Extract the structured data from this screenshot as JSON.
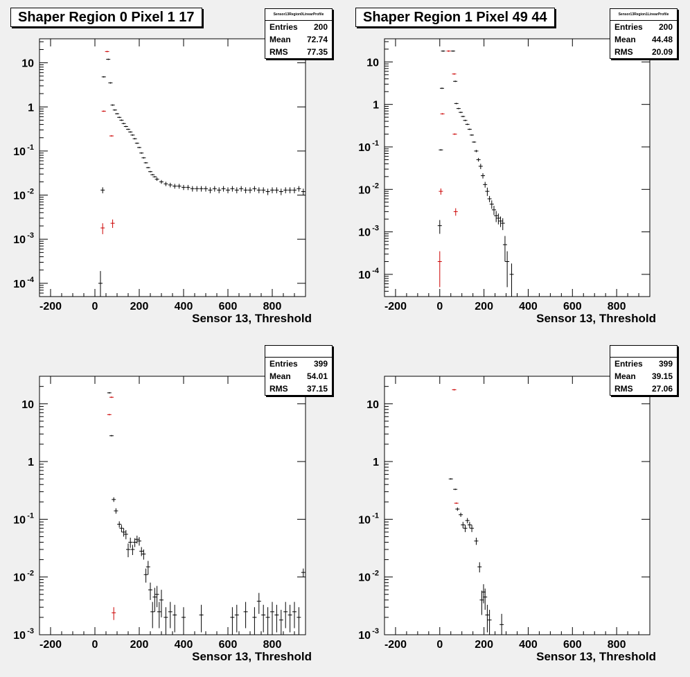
{
  "colors": {
    "background": "#f0f0f0",
    "frame": "#ffffff",
    "primary": "#000000",
    "secondary": "#cc0000"
  },
  "chart_data": [
    {
      "type": "scatter",
      "title": "Shaper Region 0 Pixel 1 17",
      "stats": {
        "name": "Sensor13Region0LinearProfile",
        "entries": "200",
        "mean": "72.74",
        "rms": "77.35"
      },
      "xlabel": "Sensor 13, Threshold",
      "xlim": [
        -250,
        950
      ],
      "ylim": [
        5e-05,
        35
      ],
      "yscale": "log",
      "xticks": [
        -200,
        0,
        200,
        400,
        600,
        800
      ],
      "xtick_labels": [
        "-200",
        "0",
        "200",
        "400",
        "600",
        "800"
      ],
      "yticks": [
        0.0001,
        0.001,
        0.01,
        0.1,
        1,
        10
      ],
      "ytick_labels": [
        [
          "10",
          "-4"
        ],
        [
          "10",
          "-3"
        ],
        [
          "10",
          "-2"
        ],
        [
          "10",
          "-1"
        ],
        [
          "1",
          ""
        ],
        [
          "10",
          ""
        ]
      ],
      "series": [
        {
          "color": "#000000",
          "points": [
            [
              25,
              0.0001,
              9e-05
            ],
            [
              35,
              0.013,
              0.002
            ],
            [
              40,
              4.8,
              0
            ],
            [
              60,
              12,
              0
            ],
            [
              70,
              3.5,
              0
            ],
            [
              80,
              1.1,
              0
            ],
            [
              90,
              0.85,
              0
            ],
            [
              100,
              0.7,
              0
            ],
            [
              110,
              0.58,
              0
            ],
            [
              120,
              0.5,
              0
            ],
            [
              130,
              0.42,
              0
            ],
            [
              140,
              0.36,
              0
            ],
            [
              150,
              0.31,
              0
            ],
            [
              160,
              0.27,
              0
            ],
            [
              170,
              0.23,
              0
            ],
            [
              180,
              0.19,
              0
            ],
            [
              190,
              0.15,
              0
            ],
            [
              200,
              0.12,
              0
            ],
            [
              210,
              0.09,
              0
            ],
            [
              220,
              0.07,
              0
            ],
            [
              230,
              0.054,
              0
            ],
            [
              240,
              0.042,
              0
            ],
            [
              250,
              0.034,
              0
            ],
            [
              260,
              0.029,
              0
            ],
            [
              270,
              0.026,
              0
            ],
            [
              280,
              0.023,
              0.002
            ],
            [
              300,
              0.02,
              0.002
            ],
            [
              320,
              0.018,
              0.002
            ],
            [
              340,
              0.017,
              0.002
            ],
            [
              360,
              0.016,
              0.002
            ],
            [
              380,
              0.016,
              0.002
            ],
            [
              400,
              0.015,
              0.002
            ],
            [
              420,
              0.015,
              0.002
            ],
            [
              440,
              0.014,
              0.002
            ],
            [
              460,
              0.014,
              0.002
            ],
            [
              480,
              0.014,
              0.002
            ],
            [
              500,
              0.014,
              0.002
            ],
            [
              520,
              0.013,
              0.002
            ],
            [
              540,
              0.014,
              0.002
            ],
            [
              560,
              0.013,
              0.002
            ],
            [
              580,
              0.014,
              0.002
            ],
            [
              600,
              0.013,
              0.002
            ],
            [
              620,
              0.014,
              0.002
            ],
            [
              640,
              0.013,
              0.002
            ],
            [
              660,
              0.014,
              0.002
            ],
            [
              680,
              0.013,
              0.002
            ],
            [
              700,
              0.013,
              0.002
            ],
            [
              720,
              0.014,
              0.002
            ],
            [
              740,
              0.013,
              0.002
            ],
            [
              760,
              0.013,
              0.002
            ],
            [
              780,
              0.012,
              0.002
            ],
            [
              800,
              0.013,
              0.002
            ],
            [
              820,
              0.013,
              0.002
            ],
            [
              840,
              0.012,
              0.002
            ],
            [
              860,
              0.013,
              0.002
            ],
            [
              880,
              0.013,
              0.002
            ],
            [
              900,
              0.013,
              0.002
            ],
            [
              920,
              0.014,
              0.002
            ],
            [
              940,
              0.012,
              0.002
            ]
          ]
        },
        {
          "color": "#cc0000",
          "points": [
            [
              35,
              0.0018,
              0.0005
            ],
            [
              40,
              0.8,
              0
            ],
            [
              55,
              18,
              0
            ],
            [
              75,
              0.22,
              0
            ],
            [
              80,
              0.0023,
              0.0005
            ]
          ]
        }
      ]
    },
    {
      "type": "scatter",
      "title": "Shaper Region 1 Pixel 49 44",
      "stats": {
        "name": "Sensor13Region1LinearProfile",
        "entries": "200",
        "mean": "44.48",
        "rms": "20.09"
      },
      "xlabel": "Sensor 13, Threshold",
      "xlim": [
        -250,
        950
      ],
      "ylim": [
        3e-05,
        35
      ],
      "yscale": "log",
      "xticks": [
        -200,
        0,
        200,
        400,
        600,
        800
      ],
      "xtick_labels": [
        "-200",
        "0",
        "200",
        "400",
        "600",
        "800"
      ],
      "yticks": [
        0.0001,
        0.001,
        0.01,
        0.1,
        1,
        10
      ],
      "ytick_labels": [
        [
          "10",
          "-4"
        ],
        [
          "10",
          "-3"
        ],
        [
          "10",
          "-2"
        ],
        [
          "10",
          "-1"
        ],
        [
          "1",
          ""
        ],
        [
          "10",
          ""
        ]
      ],
      "series": [
        {
          "color": "#000000",
          "points": [
            [
              0,
              0.0014,
              0.0005
            ],
            [
              5,
              0.085,
              0
            ],
            [
              10,
              2.4,
              0
            ],
            [
              15,
              18,
              0
            ],
            [
              60,
              18,
              0
            ],
            [
              70,
              3.5,
              0
            ],
            [
              75,
              1.05,
              0
            ],
            [
              85,
              0.8,
              0
            ],
            [
              95,
              0.65,
              0
            ],
            [
              105,
              0.52,
              0
            ],
            [
              115,
              0.42,
              0
            ],
            [
              125,
              0.34,
              0
            ],
            [
              135,
              0.26,
              0
            ],
            [
              145,
              0.19,
              0
            ],
            [
              155,
              0.13,
              0
            ],
            [
              165,
              0.08,
              0.005
            ],
            [
              175,
              0.05,
              0.005
            ],
            [
              185,
              0.035,
              0.005
            ],
            [
              195,
              0.021,
              0.003
            ],
            [
              205,
              0.013,
              0.002
            ],
            [
              215,
              0.009,
              0.002
            ],
            [
              225,
              0.006,
              0.001
            ],
            [
              235,
              0.0045,
              0.001
            ],
            [
              245,
              0.0033,
              0.0008
            ],
            [
              255,
              0.0024,
              0.0007
            ],
            [
              265,
              0.0021,
              0.0006
            ],
            [
              275,
              0.0018,
              0.0005
            ],
            [
              285,
              0.0016,
              0.0005
            ],
            [
              295,
              0.0005,
              0.0003
            ],
            [
              305,
              0.0002,
              0.00015
            ],
            [
              325,
              0.0001,
              8e-05
            ]
          ]
        },
        {
          "color": "#cc0000",
          "points": [
            [
              0,
              0.0002,
              0.00015
            ],
            [
              5,
              0.009,
              0.0015
            ],
            [
              12,
              0.6,
              0
            ],
            [
              40,
              18,
              0
            ],
            [
              65,
              5.2,
              0
            ],
            [
              68,
              0.2,
              0
            ],
            [
              72,
              0.003,
              0.0006
            ]
          ]
        }
      ]
    },
    {
      "type": "scatter",
      "title": "",
      "stats": {
        "name": "",
        "entries": "399",
        "mean": "54.01",
        "rms": "37.15"
      },
      "xlabel": "Sensor 13, Threshold",
      "xlim": [
        -250,
        950
      ],
      "ylim": [
        0.001,
        30
      ],
      "yscale": "log",
      "xticks": [
        -200,
        0,
        200,
        400,
        600,
        800
      ],
      "xtick_labels": [
        "-200",
        "0",
        "200",
        "400",
        "600",
        "800"
      ],
      "yticks": [
        0.001,
        0.01,
        0.1,
        1,
        10
      ],
      "ytick_labels": [
        [
          "10",
          "-3"
        ],
        [
          "10",
          "-2"
        ],
        [
          "10",
          "-1"
        ],
        [
          "1",
          ""
        ],
        [
          "10",
          ""
        ]
      ],
      "series": [
        {
          "color": "#000000",
          "points": [
            [
              65,
              15.5,
              0
            ],
            [
              75,
              2.8,
              0
            ],
            [
              85,
              0.22,
              0.02
            ],
            [
              95,
              0.14,
              0.015
            ],
            [
              110,
              0.082,
              0.01
            ],
            [
              120,
              0.07,
              0.01
            ],
            [
              130,
              0.06,
              0.01
            ],
            [
              140,
              0.055,
              0.01
            ],
            [
              150,
              0.03,
              0.008
            ],
            [
              160,
              0.04,
              0.008
            ],
            [
              170,
              0.03,
              0.006
            ],
            [
              180,
              0.04,
              0.007
            ],
            [
              190,
              0.045,
              0.007
            ],
            [
              200,
              0.042,
              0.007
            ],
            [
              210,
              0.028,
              0.005
            ],
            [
              220,
              0.025,
              0.005
            ],
            [
              230,
              0.011,
              0.003
            ],
            [
              240,
              0.015,
              0.004
            ],
            [
              250,
              0.006,
              0.002
            ],
            [
              260,
              0.0025,
              0.0012
            ],
            [
              270,
              0.0045,
              0.002
            ],
            [
              280,
              0.005,
              0.002
            ],
            [
              290,
              0.0025,
              0.0012
            ],
            [
              300,
              0.004,
              0.002
            ],
            [
              320,
              0.002,
              0.001
            ],
            [
              340,
              0.0025,
              0.0012
            ],
            [
              360,
              0.0022,
              0.0011
            ],
            [
              400,
              0.002,
              0.001
            ],
            [
              480,
              0.0022,
              0.0011
            ],
            [
              620,
              0.002,
              0.001
            ],
            [
              640,
              0.0022,
              0.0011
            ],
            [
              680,
              0.0025,
              0.0012
            ],
            [
              720,
              0.002,
              0.001
            ],
            [
              740,
              0.0038,
              0.0015
            ],
            [
              760,
              0.0022,
              0.0011
            ],
            [
              780,
              0.002,
              0.001
            ],
            [
              800,
              0.0025,
              0.0012
            ],
            [
              820,
              0.0022,
              0.0011
            ],
            [
              840,
              0.0018,
              0.0009
            ],
            [
              860,
              0.0025,
              0.0012
            ],
            [
              880,
              0.0022,
              0.0011
            ],
            [
              900,
              0.0025,
              0.0012
            ],
            [
              920,
              0.002,
              0.001
            ],
            [
              940,
              0.012,
              0.002
            ]
          ]
        },
        {
          "color": "#cc0000",
          "points": [
            [
              65,
              6.5,
              0
            ],
            [
              75,
              13,
              0
            ],
            [
              85,
              0.0024,
              0.0006
            ]
          ]
        }
      ]
    },
    {
      "type": "scatter",
      "title": "",
      "stats": {
        "name": "",
        "entries": "399",
        "mean": "39.15",
        "rms": "27.06"
      },
      "xlabel": "Sensor 13, Threshold",
      "xlim": [
        -250,
        950
      ],
      "ylim": [
        0.001,
        30
      ],
      "yscale": "log",
      "xticks": [
        -200,
        0,
        200,
        400,
        600,
        800
      ],
      "xtick_labels": [
        "-200",
        "0",
        "200",
        "400",
        "600",
        "800"
      ],
      "yticks": [
        0.001,
        0.01,
        0.1,
        1,
        10
      ],
      "ytick_labels": [
        [
          "10",
          "-3"
        ],
        [
          "10",
          "-2"
        ],
        [
          "10",
          "-1"
        ],
        [
          "1",
          ""
        ],
        [
          "10",
          ""
        ]
      ],
      "series": [
        {
          "color": "#000000",
          "points": [
            [
              50,
              0.5,
              0
            ],
            [
              70,
              0.33,
              0
            ],
            [
              80,
              0.15,
              0.01
            ],
            [
              95,
              0.12,
              0.01
            ],
            [
              105,
              0.08,
              0.01
            ],
            [
              115,
              0.07,
              0.01
            ],
            [
              125,
              0.095,
              0.01
            ],
            [
              135,
              0.08,
              0.01
            ],
            [
              145,
              0.07,
              0.01
            ],
            [
              165,
              0.042,
              0.006
            ],
            [
              180,
              0.015,
              0.003
            ],
            [
              190,
              0.004,
              0.0018
            ],
            [
              198,
              0.0055,
              0.002
            ],
            [
              205,
              0.0045,
              0.0018
            ],
            [
              215,
              0.0022,
              0.0011
            ],
            [
              225,
              0.0018,
              0.0009
            ],
            [
              280,
              0.0015,
              0.0008
            ]
          ]
        },
        {
          "color": "#cc0000",
          "points": [
            [
              65,
              17.5,
              0
            ],
            [
              75,
              0.19,
              0
            ]
          ]
        }
      ]
    }
  ]
}
